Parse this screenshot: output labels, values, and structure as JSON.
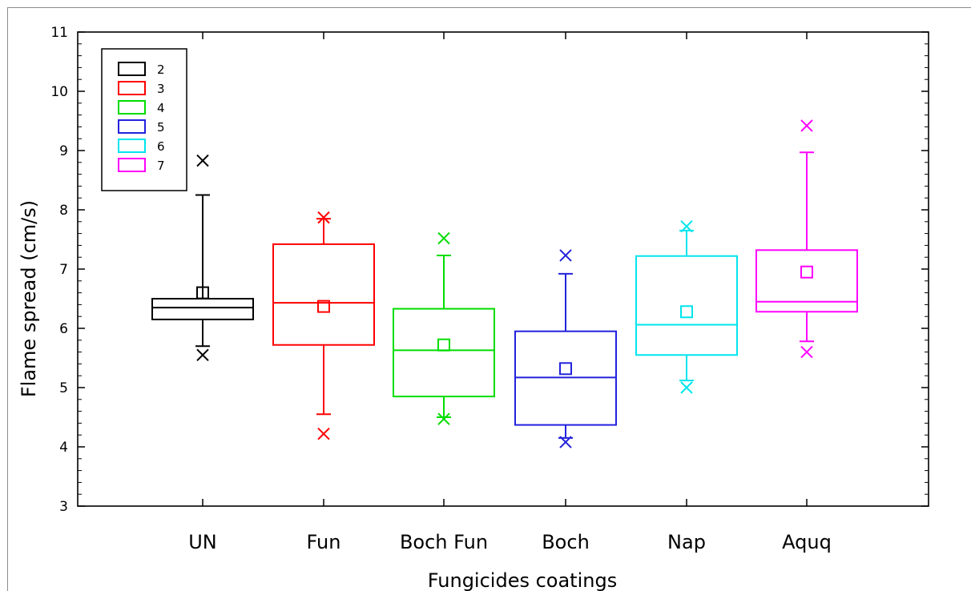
{
  "chart_data": {
    "type": "box",
    "xlabel": "Fungicides coatings",
    "ylabel": "Flame spread (cm/s)",
    "ylim": [
      3,
      11
    ],
    "yticks": [
      3,
      4,
      5,
      6,
      7,
      8,
      9,
      10,
      11
    ],
    "categories": [
      "UN",
      "Fun",
      "Boch Fun",
      "Boch",
      "Nap",
      "Aquq"
    ],
    "legend": {
      "placement": "top-left",
      "entries": [
        "2",
        "3",
        "4",
        "5",
        "6",
        "7"
      ]
    },
    "series": [
      {
        "category": "UN",
        "color": "#000000",
        "min": 5.55,
        "whisker_low": 5.7,
        "q1": 6.15,
        "median": 6.35,
        "q3": 6.5,
        "whisker_high": 8.25,
        "max": 8.83,
        "mean": 6.6
      },
      {
        "category": "Fun",
        "color": "#ff0000",
        "min": 4.22,
        "whisker_low": 4.55,
        "q1": 5.72,
        "median": 6.43,
        "q3": 7.42,
        "whisker_high": 7.85,
        "max": 7.87,
        "mean": 6.37
      },
      {
        "category": "Boch Fun",
        "color": "#00dd00",
        "min": 4.47,
        "whisker_low": 4.5,
        "q1": 4.85,
        "median": 5.63,
        "q3": 6.33,
        "whisker_high": 7.23,
        "max": 7.52,
        "mean": 5.72
      },
      {
        "category": "Boch",
        "color": "#2222dd",
        "min": 4.08,
        "whisker_low": 4.15,
        "q1": 4.37,
        "median": 5.17,
        "q3": 5.95,
        "whisker_high": 6.92,
        "max": 7.23,
        "mean": 5.32
      },
      {
        "category": "Nap",
        "color": "#00e5ee",
        "min": 5.0,
        "whisker_low": 5.12,
        "q1": 5.55,
        "median": 6.06,
        "q3": 7.22,
        "whisker_high": 7.65,
        "max": 7.72,
        "mean": 6.28
      },
      {
        "category": "Aquq",
        "color": "#ff00ff",
        "min": 5.6,
        "whisker_low": 5.78,
        "q1": 6.28,
        "median": 6.45,
        "q3": 7.32,
        "whisker_high": 8.97,
        "max": 9.42,
        "mean": 6.95
      }
    ]
  }
}
